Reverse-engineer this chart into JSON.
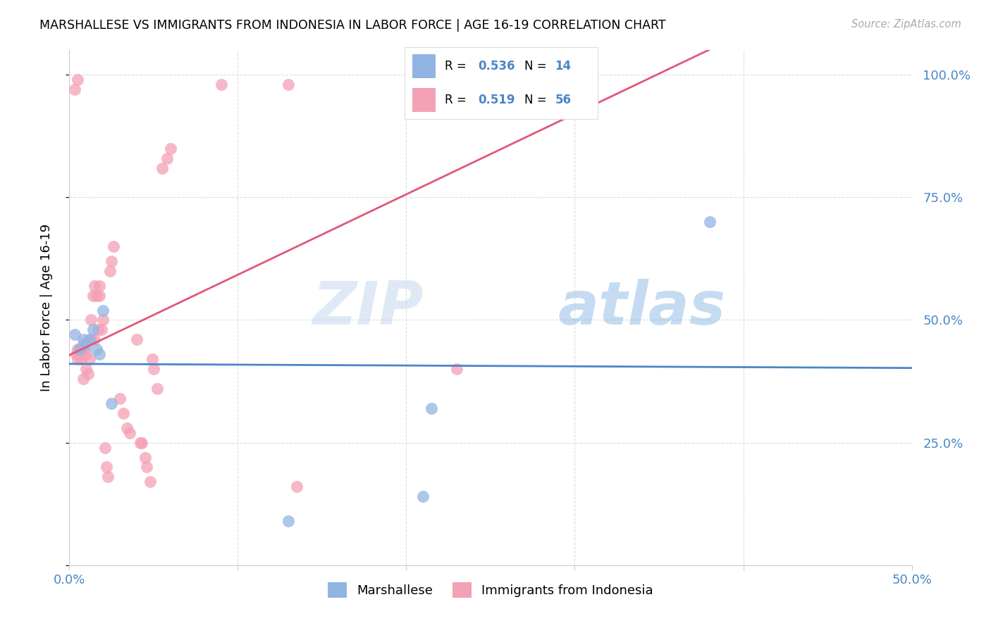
{
  "title": "MARSHALLESE VS IMMIGRANTS FROM INDONESIA IN LABOR FORCE | AGE 16-19 CORRELATION CHART",
  "source": "Source: ZipAtlas.com",
  "ylabel": "In Labor Force | Age 16-19",
  "xmin": 0.0,
  "xmax": 0.5,
  "ymin": 0.0,
  "ymax": 1.05,
  "x_ticks": [
    0.0,
    0.1,
    0.2,
    0.3,
    0.4,
    0.5
  ],
  "x_tick_labels": [
    "0.0%",
    "",
    "",
    "",
    "",
    "50.0%"
  ],
  "y_ticks": [
    0.0,
    0.25,
    0.5,
    0.75,
    1.0
  ],
  "y_tick_labels": [
    "",
    "25.0%",
    "50.0%",
    "75.0%",
    "100.0%"
  ],
  "legend_labels": [
    "Marshallese",
    "Immigrants from Indonesia"
  ],
  "blue_R": "0.536",
  "blue_N": "14",
  "pink_R": "0.519",
  "pink_N": "56",
  "blue_color": "#92b4e3",
  "pink_color": "#f4a0b5",
  "blue_line_color": "#4a86c8",
  "pink_line_color": "#e05878",
  "watermark_zip": "ZIP",
  "watermark_atlas": "atlas",
  "blue_points_x": [
    0.003,
    0.006,
    0.008,
    0.01,
    0.012,
    0.014,
    0.016,
    0.018,
    0.02,
    0.025,
    0.13,
    0.21,
    0.215,
    0.38
  ],
  "blue_points_y": [
    0.47,
    0.44,
    0.46,
    0.45,
    0.46,
    0.48,
    0.44,
    0.43,
    0.52,
    0.33,
    0.09,
    0.14,
    0.32,
    0.7
  ],
  "pink_points_x": [
    0.003,
    0.004,
    0.005,
    0.005,
    0.006,
    0.006,
    0.007,
    0.007,
    0.008,
    0.008,
    0.009,
    0.01,
    0.01,
    0.011,
    0.012,
    0.013,
    0.013,
    0.014,
    0.015,
    0.015,
    0.016,
    0.017,
    0.018,
    0.018,
    0.019,
    0.02,
    0.021,
    0.022,
    0.023,
    0.024,
    0.025,
    0.026,
    0.03,
    0.032,
    0.034,
    0.036,
    0.04,
    0.042,
    0.043,
    0.045,
    0.046,
    0.048,
    0.049,
    0.05,
    0.052,
    0.055,
    0.058,
    0.06,
    0.09,
    0.13,
    0.135,
    0.215,
    0.22,
    0.225,
    0.23,
    0.005
  ],
  "pink_points_y": [
    0.97,
    0.43,
    0.44,
    0.42,
    0.44,
    0.43,
    0.43,
    0.42,
    0.38,
    0.45,
    0.44,
    0.43,
    0.4,
    0.39,
    0.42,
    0.5,
    0.46,
    0.55,
    0.46,
    0.57,
    0.55,
    0.48,
    0.57,
    0.55,
    0.48,
    0.5,
    0.24,
    0.2,
    0.18,
    0.6,
    0.62,
    0.65,
    0.34,
    0.31,
    0.28,
    0.27,
    0.46,
    0.25,
    0.25,
    0.22,
    0.2,
    0.17,
    0.42,
    0.4,
    0.36,
    0.81,
    0.83,
    0.85,
    0.98,
    0.98,
    0.16,
    0.99,
    0.98,
    0.97,
    0.4,
    0.99
  ]
}
